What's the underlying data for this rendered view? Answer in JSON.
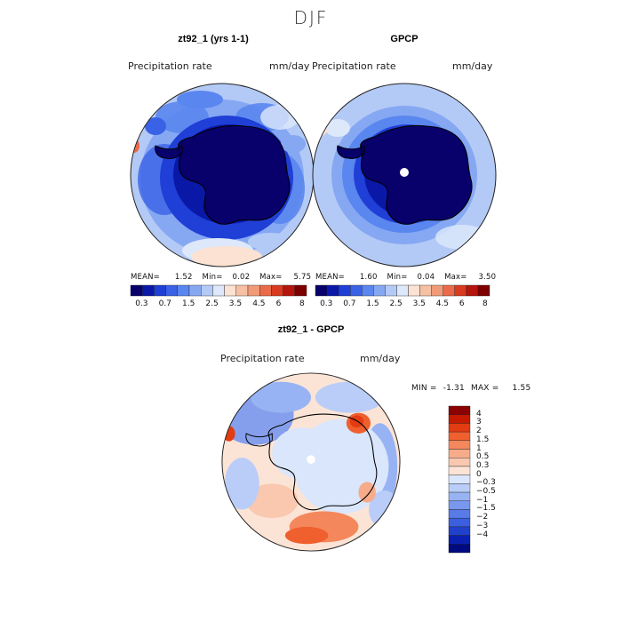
{
  "season": "DJF",
  "panels": [
    {
      "title": "zt92_1 (yrs 1-1)",
      "variable": "Precipitation rate",
      "units": "mm/day",
      "stats": {
        "mean_label": "MEAN=",
        "mean": "1.52",
        "min_label": "Min=",
        "min": "0.02",
        "max_label": "Max=",
        "max": "5.75"
      },
      "polar_hole": false
    },
    {
      "title": "GPCP",
      "variable": "Precipitation rate",
      "units": "mm/day",
      "stats": {
        "mean_label": "MEAN=",
        "mean": "1.60",
        "min_label": "Min=",
        "min": "0.04",
        "max_label": "Max=",
        "max": "3.50"
      },
      "polar_hole": true
    }
  ],
  "precip_colorbar": {
    "colors": [
      "#08006b",
      "#0a18a8",
      "#1f3fd6",
      "#3a62e6",
      "#5a86ef",
      "#86a8f3",
      "#b4caf6",
      "#dde8fb",
      "#fbe2d2",
      "#f6c0a4",
      "#f19a78",
      "#ea6b4a",
      "#d83b1f",
      "#b4150c",
      "#7d0000"
    ],
    "tick_labels": [
      "0.3",
      "0.7",
      "1.5",
      "2.5",
      "3.5",
      "4.5",
      "6",
      "8"
    ]
  },
  "diff_panel": {
    "title": "zt92_1 - GPCP",
    "variable": "Precipitation rate",
    "units": "mm/day",
    "min_label": "MIN =",
    "min": "-1.31",
    "max_label": "MAX =",
    "max": "1.55",
    "polar_hole": true
  },
  "diff_legend": {
    "colors": [
      "#8b0000",
      "#c51a00",
      "#e33b12",
      "#f0602f",
      "#f4885c",
      "#f7ab88",
      "#f9c8ae",
      "#fbe4d6",
      "#d9e6fb",
      "#b9cdf8",
      "#98b3f3",
      "#7897ee",
      "#587be8",
      "#3c5fdf",
      "#2141cd",
      "#0a20b0",
      "#000a80"
    ],
    "tick_labels": [
      "4",
      "3",
      "2",
      "1.5",
      "1",
      "0.5",
      "0.3",
      "0",
      "−0.3",
      "−0.5",
      "−1",
      "−1.5",
      "−2",
      "−3",
      "−4"
    ]
  }
}
